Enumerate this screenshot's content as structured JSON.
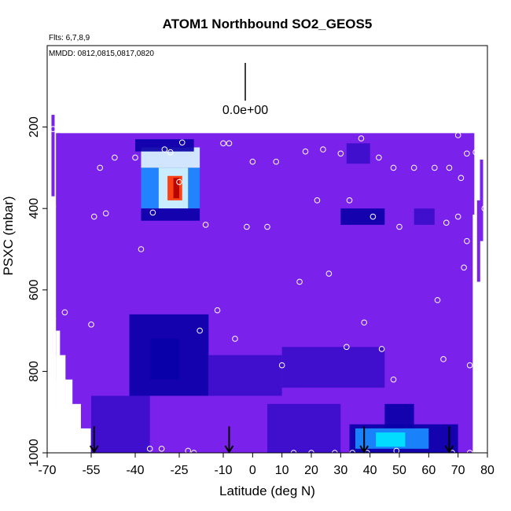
{
  "chart_data": {
    "type": "heatmap",
    "title": "ATOM1 Northbound SO2_GEOS5",
    "subtitle_flights": "Flts: 6,7,8,9",
    "subtitle_dates": "MMDD: 0812,0815,0817,0820",
    "xlabel": "Latitude (deg N)",
    "ylabel": "PSXC (mbar)",
    "xlim": [
      -70,
      80
    ],
    "ylim": [
      1000,
      0
    ],
    "x_ticks": [
      -70,
      -55,
      -40,
      -25,
      -10,
      0,
      10,
      20,
      30,
      40,
      50,
      60,
      70,
      80
    ],
    "x_tick_labels": [
      "-70",
      "-55",
      "-40",
      "-25",
      "-10",
      "0",
      "10",
      "20",
      "30",
      "40",
      "50",
      "60",
      "70",
      "80"
    ],
    "y_ticks": [
      200,
      400,
      600,
      800,
      1000
    ],
    "y_tick_labels": [
      "200",
      "400",
      "600",
      "800",
      "1000"
    ],
    "scale_value_label": "0.0e+00",
    "background_color": "#7a22ec",
    "colors": {
      "base": "#7a22ec",
      "low": "#3b0ecb",
      "lower": "#0a00a8",
      "mid": "#1a8cff",
      "high_cyan": "#00e5ff",
      "pale": "#d8f6ff",
      "hot": "#ff3300",
      "hottest": "#b00000"
    },
    "fields": [
      {
        "lat": [
          -38,
          -18
        ],
        "p": [
          250,
          300
        ],
        "level": "pale"
      },
      {
        "lat": [
          -38,
          -18
        ],
        "p": [
          300,
          400
        ],
        "level": "mid"
      },
      {
        "lat": [
          -32,
          -22
        ],
        "p": [
          300,
          400
        ],
        "level": "pale"
      },
      {
        "lat": [
          -29,
          -24
        ],
        "p": [
          320,
          380
        ],
        "level": "hot"
      },
      {
        "lat": [
          -27,
          -25
        ],
        "p": [
          325,
          375
        ],
        "level": "hottest"
      },
      {
        "lat": [
          -40,
          -20
        ],
        "p": [
          230,
          260
        ],
        "level": "lower"
      },
      {
        "lat": [
          -38,
          -18
        ],
        "p": [
          400,
          430
        ],
        "level": "lower"
      },
      {
        "lat": [
          -42,
          -15
        ],
        "p": [
          660,
          860
        ],
        "level": "lower"
      },
      {
        "lat": [
          -35,
          -25
        ],
        "p": [
          720,
          820
        ],
        "level": "lower"
      },
      {
        "lat": [
          -15,
          10
        ],
        "p": [
          760,
          860
        ],
        "level": "low"
      },
      {
        "lat": [
          10,
          45
        ],
        "p": [
          740,
          840
        ],
        "level": "low"
      },
      {
        "lat": [
          30,
          45
        ],
        "p": [
          400,
          440
        ],
        "level": "lower"
      },
      {
        "lat": [
          55,
          62
        ],
        "p": [
          400,
          440
        ],
        "level": "low"
      },
      {
        "lat": [
          32,
          40
        ],
        "p": [
          240,
          290
        ],
        "level": "low"
      },
      {
        "lat": [
          45,
          55
        ],
        "p": [
          880,
          940
        ],
        "level": "lower"
      },
      {
        "lat": [
          33,
          70
        ],
        "p": [
          930,
          1000
        ],
        "level": "lower"
      },
      {
        "lat": [
          35,
          60
        ],
        "p": [
          940,
          990
        ],
        "level": "mid"
      },
      {
        "lat": [
          42,
          52
        ],
        "p": [
          950,
          985
        ],
        "level": "high_cyan"
      },
      {
        "lat": [
          -55,
          -35
        ],
        "p": [
          860,
          1000
        ],
        "level": "low"
      },
      {
        "lat": [
          5,
          30
        ],
        "p": [
          880,
          1000
        ],
        "level": "low"
      }
    ],
    "profile_columns": [
      {
        "lat": -68,
        "p_top": 170
      },
      {
        "lat": -66,
        "p_top": 215
      },
      {
        "lat": 75,
        "p_top": 215
      },
      {
        "lat": 78,
        "p_top": 280
      },
      {
        "lat": 77,
        "p_top": 380
      }
    ],
    "observations": [
      {
        "lat": -68,
        "p": 205
      },
      {
        "lat": -68,
        "p": 395
      },
      {
        "lat": -68,
        "p": 670
      },
      {
        "lat": -64,
        "p": 655
      },
      {
        "lat": -60,
        "p": 1000
      },
      {
        "lat": -55,
        "p": 685
      },
      {
        "lat": -54,
        "p": 420
      },
      {
        "lat": -52,
        "p": 300
      },
      {
        "lat": -50,
        "p": 412
      },
      {
        "lat": -47,
        "p": 275
      },
      {
        "lat": -40,
        "p": 275
      },
      {
        "lat": -38,
        "p": 500
      },
      {
        "lat": -35,
        "p": 990
      },
      {
        "lat": -34,
        "p": 410
      },
      {
        "lat": -31,
        "p": 990
      },
      {
        "lat": -30,
        "p": 255
      },
      {
        "lat": -28,
        "p": 262
      },
      {
        "lat": -25,
        "p": 335
      },
      {
        "lat": -24,
        "p": 238
      },
      {
        "lat": -22,
        "p": 995
      },
      {
        "lat": -20,
        "p": 1000
      },
      {
        "lat": -18,
        "p": 700
      },
      {
        "lat": -16,
        "p": 440
      },
      {
        "lat": -12,
        "p": 650
      },
      {
        "lat": -10,
        "p": 240
      },
      {
        "lat": -8,
        "p": 240
      },
      {
        "lat": -6,
        "p": 720
      },
      {
        "lat": -2,
        "p": 445
      },
      {
        "lat": 0,
        "p": 285
      },
      {
        "lat": 5,
        "p": 445
      },
      {
        "lat": 8,
        "p": 285
      },
      {
        "lat": 10,
        "p": 785
      },
      {
        "lat": 14,
        "p": 1000
      },
      {
        "lat": 16,
        "p": 580
      },
      {
        "lat": 18,
        "p": 260
      },
      {
        "lat": 20,
        "p": 1000
      },
      {
        "lat": 22,
        "p": 380
      },
      {
        "lat": 24,
        "p": 255
      },
      {
        "lat": 26,
        "p": 560
      },
      {
        "lat": 28,
        "p": 1000
      },
      {
        "lat": 30,
        "p": 265
      },
      {
        "lat": 32,
        "p": 740
      },
      {
        "lat": 33,
        "p": 380
      },
      {
        "lat": 34,
        "p": 1000
      },
      {
        "lat": 37,
        "p": 228
      },
      {
        "lat": 38,
        "p": 680
      },
      {
        "lat": 39,
        "p": 1000
      },
      {
        "lat": 41,
        "p": 420
      },
      {
        "lat": 43,
        "p": 275
      },
      {
        "lat": 44,
        "p": 745
      },
      {
        "lat": 48,
        "p": 300
      },
      {
        "lat": 48,
        "p": 820
      },
      {
        "lat": 49,
        "p": 995
      },
      {
        "lat": 50,
        "p": 445
      },
      {
        "lat": 55,
        "p": 300
      },
      {
        "lat": 62,
        "p": 300
      },
      {
        "lat": 63,
        "p": 625
      },
      {
        "lat": 65,
        "p": 770
      },
      {
        "lat": 66,
        "p": 435
      },
      {
        "lat": 67,
        "p": 300
      },
      {
        "lat": 68,
        "p": 1000
      },
      {
        "lat": 70,
        "p": 220
      },
      {
        "lat": 70,
        "p": 420
      },
      {
        "lat": 71,
        "p": 325
      },
      {
        "lat": 72,
        "p": 545
      },
      {
        "lat": 73,
        "p": 265
      },
      {
        "lat": 73,
        "p": 480
      },
      {
        "lat": 74,
        "p": 785
      },
      {
        "lat": 74,
        "p": 1000
      },
      {
        "lat": 76,
        "p": 262
      },
      {
        "lat": 79,
        "p": 400
      }
    ],
    "flight_markers_lat": [
      -54,
      -8,
      38,
      67
    ]
  }
}
